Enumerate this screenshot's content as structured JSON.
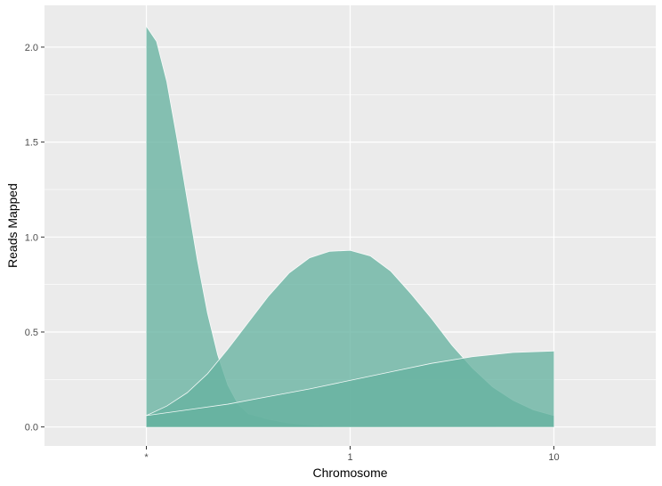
{
  "chart_data": {
    "type": "area",
    "title": "",
    "xlabel": "Chromosome",
    "ylabel": "Reads Mapped",
    "categories": [
      "*",
      "1",
      "10"
    ],
    "x_range": [
      -0.5,
      2.5
    ],
    "ylim": [
      -0.1,
      2.22
    ],
    "y_ticks": [
      0.0,
      0.5,
      1.0,
      1.5,
      2.0
    ],
    "y_tick_labels": [
      "0.0",
      "0.5",
      "1.0",
      "1.5",
      "2.0"
    ],
    "grid": true,
    "legend": "none",
    "colors": {
      "fill": "#66b2a0",
      "panel": "#ebebeb",
      "grid": "#ffffff"
    },
    "series": [
      {
        "x": [
          0,
          0.05,
          0.1,
          0.15,
          0.2,
          0.25,
          0.3,
          0.35,
          0.4,
          0.45,
          0.5,
          0.6,
          0.7,
          0.8,
          0.9,
          1.0,
          1.2,
          1.5,
          2.0
        ],
        "values": [
          2.11,
          2.03,
          1.82,
          1.52,
          1.2,
          0.88,
          0.6,
          0.38,
          0.22,
          0.12,
          0.07,
          0.04,
          0.02,
          0.01,
          0.005,
          0.003,
          0.002,
          0.001,
          0.0
        ]
      },
      {
        "x": [
          0,
          0.1,
          0.2,
          0.3,
          0.4,
          0.5,
          0.6,
          0.7,
          0.8,
          0.9,
          1.0,
          1.1,
          1.2,
          1.3,
          1.4,
          1.5,
          1.6,
          1.7,
          1.8,
          1.9,
          2.0
        ],
        "values": [
          0.06,
          0.11,
          0.18,
          0.28,
          0.41,
          0.55,
          0.69,
          0.81,
          0.89,
          0.925,
          0.93,
          0.9,
          0.82,
          0.7,
          0.57,
          0.43,
          0.31,
          0.21,
          0.14,
          0.09,
          0.06
        ]
      },
      {
        "x": [
          0,
          0.2,
          0.4,
          0.6,
          0.8,
          1.0,
          1.2,
          1.4,
          1.6,
          1.8,
          2.0
        ],
        "values": [
          0.06,
          0.09,
          0.12,
          0.16,
          0.2,
          0.245,
          0.29,
          0.335,
          0.37,
          0.392,
          0.4
        ]
      }
    ]
  }
}
